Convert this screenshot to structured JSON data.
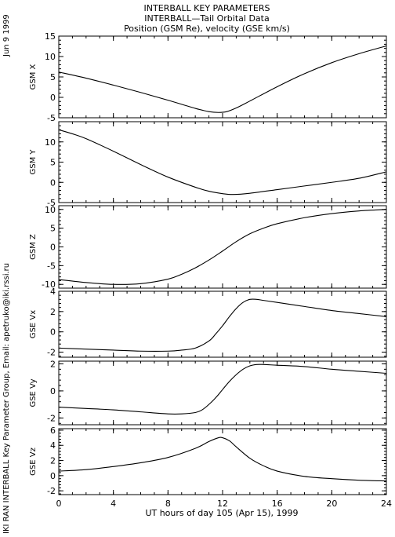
{
  "titles": [
    "INTERBALL KEY PARAMETERS",
    "INTERBALL—Tail Orbital Data",
    "Position (GSM Re), velocity (GSE km/s)"
  ],
  "date_label": "Jun  9 1999",
  "credit": "IKI RAN INTERBALL Key Parameter Group, Email: apetruko@iki.rssi.ru",
  "chart_data": {
    "type": "line",
    "xlabel": "UT hours of day 105 (Apr 15), 1999",
    "x_ticks": [
      0,
      4,
      8,
      12,
      16,
      20,
      24
    ],
    "xlim": [
      0,
      24
    ],
    "grid": false,
    "panels": [
      {
        "ylabel": "GSM X",
        "ylim": [
          -5,
          15
        ],
        "y_ticks": [
          -5,
          0,
          5,
          10,
          15
        ],
        "x": [
          0,
          2,
          4,
          6,
          8,
          10,
          11,
          11.7,
          12.3,
          13,
          14,
          16,
          18,
          20,
          22,
          24
        ],
        "values": [
          6.2,
          4.7,
          3.0,
          1.2,
          -0.7,
          -2.7,
          -3.5,
          -3.7,
          -3.5,
          -2.6,
          -0.9,
          2.6,
          5.8,
          8.5,
          10.7,
          12.6
        ]
      },
      {
        "ylabel": "GSM Y",
        "ylim": [
          -5,
          15
        ],
        "y_ticks": [
          -5,
          0,
          5,
          10
        ],
        "x": [
          0,
          1,
          2,
          4,
          6,
          8,
          10,
          11,
          12,
          12.8,
          14,
          16,
          18,
          20,
          22,
          24
        ],
        "values": [
          13.0,
          12.0,
          10.8,
          7.7,
          4.4,
          1.3,
          -1.2,
          -2.2,
          -2.8,
          -3.0,
          -2.7,
          -1.8,
          -0.9,
          0.0,
          1.0,
          2.6
        ]
      },
      {
        "ylabel": "GSM Z",
        "ylim": [
          -11,
          11
        ],
        "y_ticks": [
          -10,
          -5,
          0,
          5,
          10
        ],
        "x": [
          0,
          2,
          4,
          6,
          8,
          9,
          10,
          11,
          12,
          13,
          14,
          15,
          16,
          18,
          20,
          22,
          24
        ],
        "values": [
          -8.7,
          -9.5,
          -10.0,
          -9.8,
          -8.6,
          -7.3,
          -5.6,
          -3.5,
          -1.1,
          1.4,
          3.5,
          5.0,
          6.2,
          7.8,
          8.9,
          9.6,
          10.0
        ]
      },
      {
        "ylabel": "GSE Vx",
        "ylim": [
          -2.5,
          4
        ],
        "y_ticks": [
          -2,
          0,
          2,
          4
        ],
        "x": [
          0,
          2,
          4,
          6,
          8,
          9,
          10,
          11,
          11.5,
          12,
          12.5,
          13,
          13.5,
          14,
          14.5,
          15,
          16,
          18,
          20,
          22,
          24
        ],
        "values": [
          -1.6,
          -1.7,
          -1.8,
          -1.9,
          -1.9,
          -1.8,
          -1.6,
          -0.9,
          -0.2,
          0.6,
          1.5,
          2.3,
          2.9,
          3.2,
          3.2,
          3.1,
          2.9,
          2.5,
          2.1,
          1.8,
          1.5
        ]
      },
      {
        "ylabel": "GSE Vy",
        "ylim": [
          -2.5,
          2.2
        ],
        "y_ticks": [
          -2,
          0,
          2
        ],
        "x": [
          0,
          2,
          4,
          6,
          8,
          9,
          10,
          10.5,
          11,
          11.5,
          12,
          12.5,
          13,
          13.5,
          14,
          14.5,
          15,
          16,
          18,
          20,
          22,
          24
        ],
        "values": [
          -1.2,
          -1.3,
          -1.4,
          -1.55,
          -1.7,
          -1.7,
          -1.6,
          -1.4,
          -1.0,
          -0.5,
          0.1,
          0.7,
          1.2,
          1.6,
          1.85,
          1.95,
          1.95,
          1.9,
          1.8,
          1.6,
          1.45,
          1.3
        ]
      },
      {
        "ylabel": "GSE Vz",
        "ylim": [
          -2.5,
          6.2
        ],
        "y_ticks": [
          -2,
          0,
          2,
          4,
          6
        ],
        "x": [
          0,
          2,
          4,
          6,
          8,
          10,
          11,
          11.7,
          12,
          12.5,
          13,
          14,
          15,
          16,
          18,
          20,
          22,
          24
        ],
        "values": [
          0.6,
          0.8,
          1.2,
          1.7,
          2.4,
          3.6,
          4.5,
          5.0,
          5.0,
          4.6,
          3.8,
          2.3,
          1.3,
          0.6,
          -0.1,
          -0.4,
          -0.6,
          -0.7
        ]
      }
    ]
  }
}
